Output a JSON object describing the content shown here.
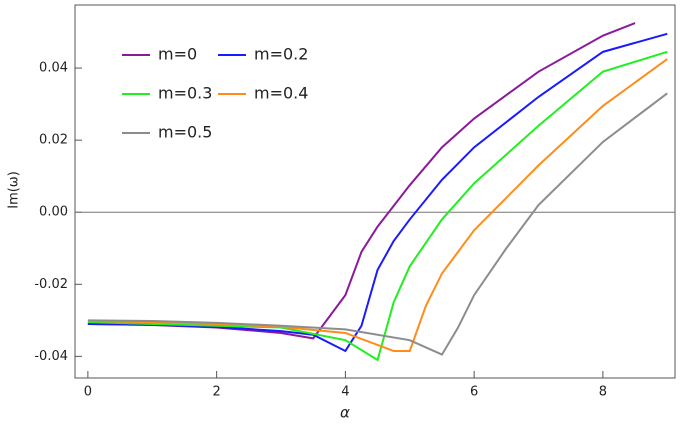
{
  "chart_data": {
    "type": "line",
    "x_label": "α",
    "y_label": "Im(ω)",
    "xlim": [
      -0.2,
      9.12
    ],
    "ylim": [
      -0.046,
      0.0575
    ],
    "xticks": [
      0,
      2,
      4,
      6,
      8
    ],
    "yticks": [
      -0.04,
      -0.02,
      {
        "value": 0,
        "label": "0.00"
      },
      0.02,
      0.04
    ],
    "series": [
      {
        "name": "m=0",
        "color": "#8b1a9b",
        "x": [
          0,
          1,
          2,
          3,
          3.5,
          4,
          4.25,
          4.5,
          5,
          5.5,
          6,
          7,
          8,
          8.5
        ],
        "values": [
          -0.031,
          -0.0313,
          -0.032,
          -0.0335,
          -0.035,
          -0.023,
          -0.011,
          -0.004,
          0.0075,
          0.018,
          0.026,
          0.039,
          0.049,
          0.0525
        ]
      },
      {
        "name": "m=0.2",
        "color": "#1a1aff",
        "x": [
          0,
          1,
          2,
          3,
          3.5,
          4,
          4.25,
          4.5,
          4.75,
          5,
          5.5,
          6,
          7,
          8,
          9
        ],
        "values": [
          -0.031,
          -0.0312,
          -0.0318,
          -0.033,
          -0.034,
          -0.0385,
          -0.0315,
          -0.016,
          -0.008,
          -0.002,
          0.009,
          0.018,
          0.032,
          0.0445,
          0.0495
        ]
      },
      {
        "name": "m=0.3",
        "color": "#22ee22",
        "x": [
          0,
          1,
          2,
          3,
          4,
          4.5,
          4.75,
          5,
          5.5,
          6,
          7,
          8,
          9
        ],
        "values": [
          -0.0305,
          -0.031,
          -0.0315,
          -0.032,
          -0.0355,
          -0.041,
          -0.025,
          -0.015,
          -0.002,
          0.008,
          0.024,
          0.039,
          0.0445
        ]
      },
      {
        "name": "m=0.4",
        "color": "#ff8c1a",
        "x": [
          0,
          1,
          2,
          3,
          4,
          4.75,
          5,
          5.25,
          5.5,
          6,
          7,
          8,
          9
        ],
        "values": [
          -0.0302,
          -0.0305,
          -0.031,
          -0.0318,
          -0.0335,
          -0.0385,
          -0.0385,
          -0.026,
          -0.017,
          -0.005,
          0.013,
          0.0295,
          0.0425
        ]
      },
      {
        "name": "m=0.5",
        "color": "#8c8c8c",
        "x": [
          0,
          1,
          2,
          3,
          4,
          5,
          5.5,
          5.75,
          6,
          6.5,
          7,
          8,
          9
        ],
        "values": [
          -0.03,
          -0.0302,
          -0.0307,
          -0.0315,
          -0.0325,
          -0.0355,
          -0.0395,
          -0.032,
          -0.023,
          -0.01,
          0.002,
          0.0195,
          0.033
        ]
      }
    ]
  }
}
